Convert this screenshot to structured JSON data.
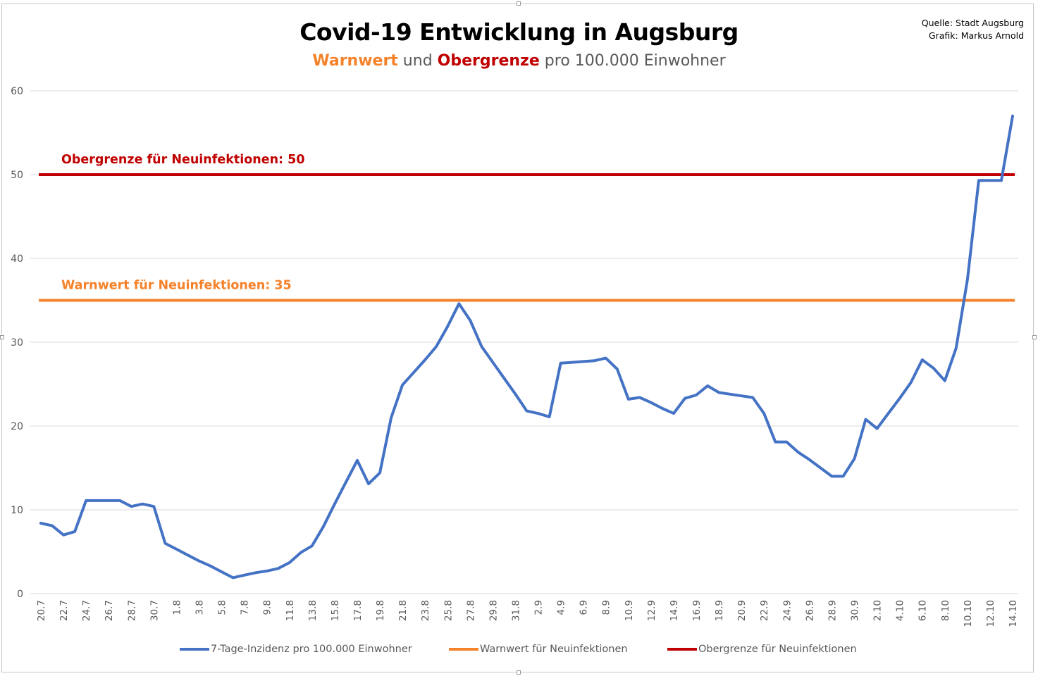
{
  "title": "Covid-19 Entwicklung in Augsburg",
  "subtitle": {
    "part1": "Warnwert",
    "part2": " und ",
    "part3": "Obergrenze",
    "part4": " pro 100.000 Einwohner"
  },
  "source": {
    "line1": "Quelle: Stadt Augsburg",
    "line2": "Grafik: Markus Arnold"
  },
  "colors": {
    "incidence": "#4472c4",
    "warn": "#f5822a",
    "limit": "#c00000",
    "grid": "#d9d9d9"
  },
  "chart_data": {
    "type": "line",
    "title": "Covid-19 Entwicklung in Augsburg",
    "ylim": [
      0,
      60
    ],
    "yticks": [
      0,
      10,
      20,
      30,
      40,
      50,
      60
    ],
    "grid": true,
    "legend_position": "bottom",
    "xtick_labels": [
      "20.7",
      "22.7",
      "24.7",
      "26.7",
      "28.7",
      "30.7",
      "1.8",
      "3.8",
      "5.8",
      "7.8",
      "9.8",
      "11.8",
      "13.8",
      "15.8",
      "17.8",
      "19.8",
      "21.8",
      "23.8",
      "25.8",
      "27.8",
      "29.8",
      "31.8",
      "2.9",
      "4.9",
      "6.9",
      "8.9",
      "10.9",
      "12.9",
      "14.9",
      "16.9",
      "18.9",
      "20.9",
      "22.9",
      "24.9",
      "26.9",
      "28.9",
      "30.9",
      "2.10",
      "4.10",
      "6.10",
      "8.10",
      "10.10",
      "12.10",
      "14.10"
    ],
    "x": [
      "20.7",
      "21.7",
      "22.7",
      "23.7",
      "24.7",
      "25.7",
      "26.7",
      "27.7",
      "28.7",
      "29.7",
      "30.7",
      "31.7",
      "1.8",
      "2.8",
      "3.8",
      "4.8",
      "5.8",
      "6.8",
      "7.8",
      "8.8",
      "9.8",
      "10.8",
      "11.8",
      "12.8",
      "13.8",
      "14.8",
      "15.8",
      "16.8",
      "17.8",
      "18.8",
      "19.8",
      "20.8",
      "21.8",
      "22.8",
      "23.8",
      "24.8",
      "25.8",
      "26.8",
      "27.8",
      "28.8",
      "29.8",
      "30.8",
      "31.8",
      "1.9",
      "2.9",
      "3.9",
      "4.9",
      "5.9",
      "6.9",
      "7.9",
      "8.9",
      "9.9",
      "10.9",
      "11.9",
      "12.9",
      "13.9",
      "14.9",
      "15.9",
      "16.9",
      "17.9",
      "18.9",
      "19.9",
      "20.9",
      "21.9",
      "22.9",
      "23.9",
      "24.9",
      "25.9",
      "26.9",
      "27.9",
      "28.9",
      "29.9",
      "30.9",
      "1.10",
      "2.10",
      "3.10",
      "4.10",
      "5.10",
      "6.10",
      "7.10",
      "8.10",
      "9.10",
      "10.10",
      "11.10",
      "12.10",
      "13.10",
      "14.10"
    ],
    "series": [
      {
        "name": "7-Tage-Inzidenz pro 100.000 Einwohner",
        "color": "#4472c4",
        "values": [
          8.4,
          8.1,
          7.0,
          7.4,
          11.1,
          11.1,
          11.1,
          11.1,
          10.4,
          10.7,
          10.4,
          6.0,
          5.3,
          4.6,
          3.9,
          3.3,
          2.6,
          1.9,
          2.2,
          2.5,
          2.7,
          3.0,
          3.7,
          4.9,
          5.7,
          8.0,
          10.7,
          13.3,
          15.9,
          13.1,
          14.4,
          21.0,
          24.9,
          26.4,
          27.9,
          29.5,
          31.9,
          34.6,
          32.6,
          29.5,
          27.6,
          25.7,
          23.8,
          21.8,
          21.5,
          21.1,
          27.5,
          27.6,
          27.7,
          27.8,
          28.1,
          26.8,
          23.2,
          23.4,
          22.8,
          22.1,
          21.5,
          23.3,
          23.7,
          24.8,
          24.0,
          23.8,
          23.6,
          23.4,
          21.5,
          18.1,
          18.1,
          16.9,
          16.0,
          15.0,
          14.0,
          14.0,
          16.1,
          20.8,
          19.7,
          21.5,
          23.3,
          25.2,
          27.9,
          26.9,
          25.4,
          29.3,
          37.5,
          49.3,
          49.3,
          49.3,
          57.0
        ]
      },
      {
        "name": "Warnwert für Neuinfektionen",
        "color": "#f5822a",
        "value": 35,
        "label": "Warnwert für Neuinfektionen: 35"
      },
      {
        "name": "Obergrenze für Neuinfektionen",
        "color": "#c00000",
        "value": 50,
        "label": "Obergrenze für Neuinfektionen: 50"
      }
    ]
  }
}
